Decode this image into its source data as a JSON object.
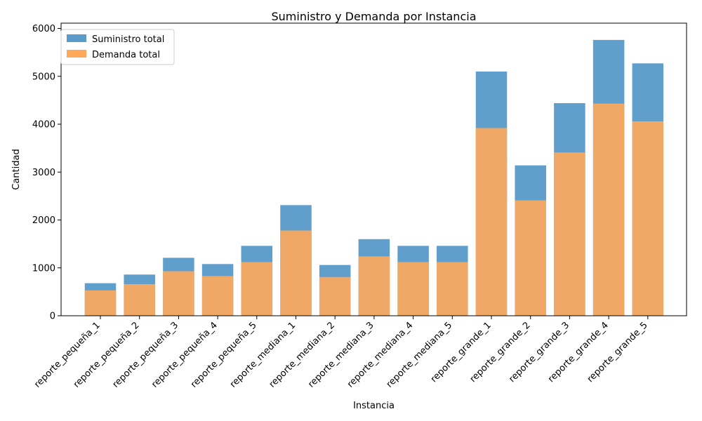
{
  "chart_data": {
    "type": "bar",
    "title": "Suministro y Demanda por Instancia",
    "xlabel": "Instancia",
    "ylabel": "Cantidad",
    "ylim": [
      0,
      6000
    ],
    "yticks": [
      0,
      1000,
      2000,
      3000,
      4000,
      5000,
      6000
    ],
    "grid": false,
    "legend_position": "upper-left",
    "categories": [
      "reporte_pequeña_1",
      "reporte_pequeña_2",
      "reporte_pequeña_3",
      "reporte_pequeña_4",
      "reporte_pequeña_5",
      "reporte_mediana_1",
      "reporte_mediana_2",
      "reporte_mediana_3",
      "reporte_mediana_4",
      "reporte_mediana_5",
      "reporte_grande_1",
      "reporte_grande_2",
      "reporte_grande_3",
      "reporte_grande_4",
      "reporte_grande_5"
    ],
    "series": [
      {
        "name": "Suministro total",
        "color": "#5b9bc9",
        "values": [
          680,
          860,
          1210,
          1080,
          1460,
          2310,
          1060,
          1600,
          1460,
          1460,
          5100,
          3140,
          4440,
          5760,
          5270
        ]
      },
      {
        "name": "Demanda total",
        "color": "#ffa85a",
        "values": [
          530,
          660,
          930,
          830,
          1120,
          1780,
          810,
          1240,
          1120,
          1120,
          3920,
          2410,
          3410,
          4430,
          4060
        ]
      }
    ]
  }
}
